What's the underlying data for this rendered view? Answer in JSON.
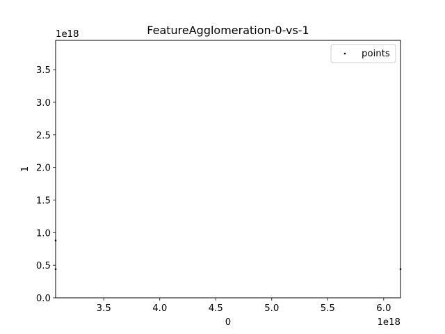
{
  "chart_data": {
    "type": "scatter",
    "title": "FeatureAgglomeration-0-vs-1",
    "xlabel": "0",
    "ylabel": "1",
    "x_offset_label": "1e18",
    "y_offset_label": "1e18",
    "xlim": [
      3.07,
      6.15
    ],
    "ylim": [
      0.0,
      3.95
    ],
    "xticks": [
      3.5,
      4.0,
      4.5,
      5.0,
      5.5,
      6.0
    ],
    "xtick_labels": [
      "3.5",
      "4.0",
      "4.5",
      "5.0",
      "5.5",
      "6.0"
    ],
    "yticks": [
      0.0,
      0.5,
      1.0,
      1.5,
      2.0,
      2.5,
      3.0,
      3.5
    ],
    "ytick_labels": [
      "0.0",
      "0.5",
      "1.0",
      "1.5",
      "2.0",
      "2.5",
      "3.0",
      "3.5"
    ],
    "grid": false,
    "legend_placement": "top-right",
    "series": [
      {
        "name": "points",
        "color": "#000000",
        "points": [
          {
            "x": 3.07,
            "y": 0.88
          },
          {
            "x": 3.07,
            "y": 0.44
          },
          {
            "x": 6.15,
            "y": 0.44
          }
        ]
      }
    ]
  }
}
